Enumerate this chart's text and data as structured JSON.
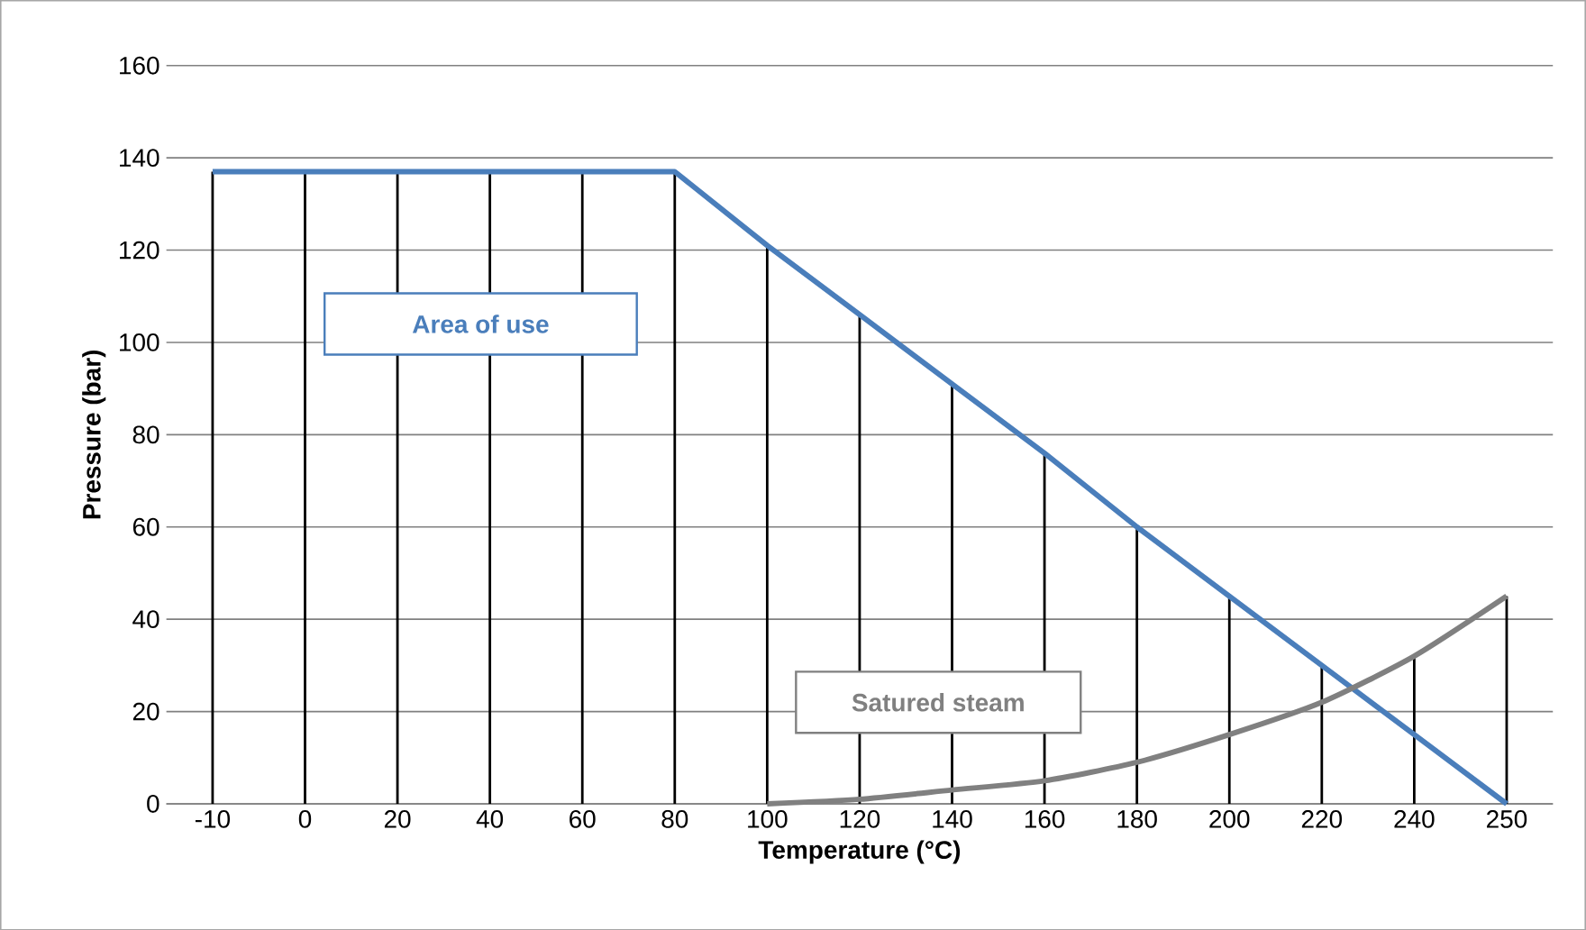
{
  "chart_data": {
    "type": "line",
    "xlabel": "Temperature (°C)",
    "ylabel": "Pressure (bar)",
    "categories": [
      "-10",
      "0",
      "20",
      "40",
      "60",
      "80",
      "100",
      "120",
      "140",
      "160",
      "180",
      "200",
      "220",
      "240",
      "250"
    ],
    "series": [
      {
        "name": "Area of use",
        "color": "#4a7ebb",
        "values": [
          137,
          137,
          137,
          137,
          137,
          137,
          121,
          106,
          91,
          76,
          60,
          45,
          30,
          15,
          0
        ]
      },
      {
        "name": "Satured steam",
        "color": "#808080",
        "values": [
          null,
          null,
          null,
          null,
          null,
          null,
          0,
          1,
          3,
          5,
          9,
          15,
          22,
          32,
          45
        ]
      },
      {
        "type": "bar",
        "color": "#000000",
        "values": [
          137,
          137,
          137,
          137,
          137,
          137,
          121,
          106,
          91,
          76,
          60,
          45,
          30,
          32,
          45
        ]
      }
    ],
    "ylim": [
      0,
      160
    ],
    "yticks": [
      0,
      20,
      40,
      60,
      80,
      100,
      120,
      140,
      160
    ],
    "grid": "y",
    "marker": "none",
    "line_style": "solid"
  }
}
